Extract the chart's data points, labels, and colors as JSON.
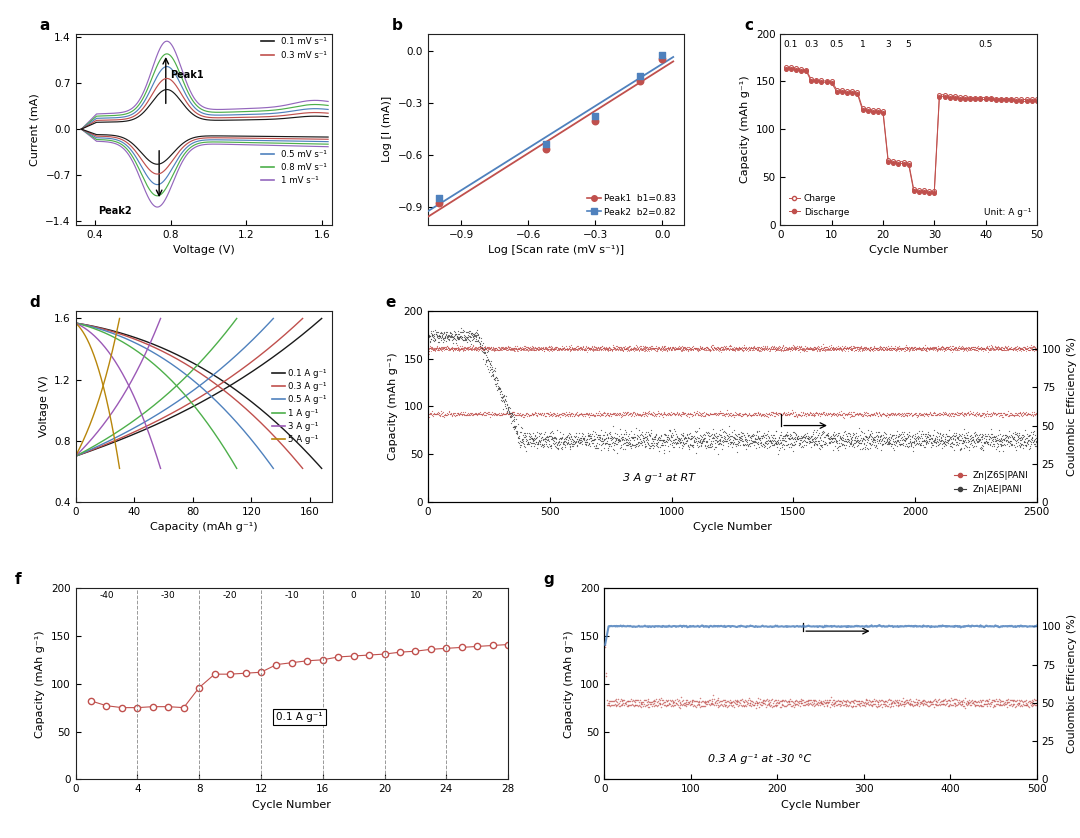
{
  "panel_a": {
    "title": "a",
    "xlabel": "Voltage (V)",
    "ylabel": "Current (mA)",
    "xlim": [
      0.3,
      1.65
    ],
    "ylim": [
      -1.45,
      1.45
    ],
    "xticks": [
      0.4,
      0.8,
      1.2,
      1.6
    ],
    "yticks": [
      -1.4,
      -0.7,
      0.0,
      0.7,
      1.4
    ],
    "colors": [
      "#1a1a1a",
      "#c0504d",
      "#4f81bd",
      "#4daf4a",
      "#9467bd"
    ],
    "labels": [
      "0.1 mV s⁻¹",
      "0.3 mV s⁻¹",
      "0.5 mV s⁻¹",
      "0.8 mV s⁻¹",
      "1 mV s⁻¹"
    ],
    "scales": [
      1.0,
      1.28,
      1.58,
      1.9,
      2.22
    ]
  },
  "panel_b": {
    "title": "b",
    "xlabel": "Log [Scan rate (mV s⁻¹)]",
    "ylabel": "Log [I (mA)]",
    "xlim": [
      -1.05,
      0.1
    ],
    "ylim": [
      -1.0,
      0.1
    ],
    "xticks": [
      -0.9,
      -0.6,
      -0.3,
      0.0
    ],
    "yticks": [
      -0.9,
      -0.6,
      -0.3,
      0.0
    ],
    "peak1_x": [
      -1.0,
      -0.523,
      -0.301,
      -0.097,
      0.0
    ],
    "peak1_y": [
      -0.875,
      -0.565,
      -0.405,
      -0.175,
      -0.045
    ],
    "peak2_x": [
      -1.0,
      -0.523,
      -0.301,
      -0.097,
      0.0
    ],
    "peak2_y": [
      -0.845,
      -0.535,
      -0.375,
      -0.145,
      -0.025
    ],
    "peak1_color": "#c0504d",
    "peak2_color": "#4f81bd",
    "label1": "Peak1  b1=0.83",
    "label2": "Peak2  b2=0.82"
  },
  "panel_c": {
    "title": "c",
    "xlabel": "Cycle Number",
    "ylabel": "Capacity (mAh g⁻¹)",
    "xlim": [
      0,
      50
    ],
    "ylim": [
      0,
      200
    ],
    "xticks": [
      0,
      10,
      20,
      30,
      40,
      50
    ],
    "yticks": [
      0,
      50,
      100,
      150,
      200
    ],
    "color": "#c0504d",
    "rate_labels": [
      "0.1",
      "0.3",
      "0.5",
      "1",
      "3",
      "5",
      "0.5"
    ],
    "rate_x": [
      2,
      6,
      11,
      16,
      21,
      25,
      40
    ],
    "rate_y": [
      185,
      185,
      185,
      185,
      185,
      185,
      185
    ],
    "charge_vals": [
      165,
      165,
      164,
      163,
      162,
      152,
      151,
      151,
      150,
      150,
      141,
      141,
      140,
      140,
      139,
      122,
      121,
      120,
      120,
      119,
      68,
      67,
      66,
      66,
      65,
      37,
      36,
      36,
      35,
      35,
      136,
      136,
      135,
      135,
      134,
      134,
      133,
      133,
      133,
      133,
      133,
      132,
      132,
      132,
      132,
      131,
      131,
      131,
      131,
      131
    ],
    "discharge_vals": [
      163,
      163,
      162,
      161,
      161,
      150,
      150,
      149,
      149,
      148,
      139,
      139,
      138,
      138,
      137,
      120,
      119,
      118,
      118,
      117,
      66,
      65,
      64,
      64,
      63,
      35,
      34,
      34,
      33,
      33,
      134,
      134,
      133,
      133,
      132,
      132,
      131,
      131,
      131,
      131,
      131,
      130,
      130,
      130,
      130,
      129,
      129,
      129,
      129,
      129
    ],
    "annotation": "Unit: A g⁻¹"
  },
  "panel_d": {
    "title": "d",
    "xlabel": "Capacity (mAh g⁻¹)",
    "ylabel": "Voltage (V)",
    "xlim": [
      0,
      175
    ],
    "ylim": [
      0.4,
      1.65
    ],
    "xticks": [
      0,
      40,
      80,
      120,
      160
    ],
    "yticks": [
      0.4,
      0.8,
      1.2,
      1.6
    ],
    "colors": [
      "#1a1a1a",
      "#c0504d",
      "#4f81bd",
      "#4daf4a",
      "#9b59b6",
      "#b8860b"
    ],
    "labels": [
      "0.1 A g⁻¹",
      "0.3 A g⁻¹",
      "0.5 A g⁻¹",
      "1 A g⁻¹",
      "3 A g⁻¹",
      "5 A g⁻¹"
    ],
    "cap_maxes": [
      168,
      155,
      135,
      110,
      58,
      30
    ]
  },
  "panel_e": {
    "title": "e",
    "xlabel": "Cycle Number",
    "ylabel_left": "Capacity (mAh g⁻¹)",
    "ylabel_right": "Coulombic Efficiency (%)",
    "xlim": [
      0,
      2500
    ],
    "ylim_left": [
      0,
      200
    ],
    "ylim_right": [
      0,
      125
    ],
    "xticks": [
      0,
      500,
      1000,
      1500,
      2000,
      2500
    ],
    "yticks_left": [
      0,
      50,
      100,
      150,
      200
    ],
    "yticks_right": [
      0,
      25,
      50,
      75,
      100
    ],
    "color_z6s": "#c0504d",
    "color_ae": "#404040",
    "annotation": "3 A g⁻¹ at RT",
    "label_z6s": "Zn|Z6S|PANI",
    "label_ae": "Zn|AE|PANI"
  },
  "panel_f": {
    "title": "f",
    "xlabel": "Cycle Number",
    "ylabel": "Capacity (mAh g⁻¹)",
    "xlim": [
      0,
      28
    ],
    "ylim": [
      0,
      200
    ],
    "xticks": [
      0,
      4,
      8,
      12,
      16,
      20,
      24,
      28
    ],
    "yticks": [
      0,
      50,
      100,
      150,
      200
    ],
    "color": "#c0504d",
    "temp_labels": [
      "-40",
      "-30",
      "-20",
      "-10",
      "0",
      "10",
      "20"
    ],
    "temp_x": [
      2,
      6,
      10,
      14,
      18,
      22,
      26
    ],
    "vline_positions": [
      4,
      8,
      12,
      16,
      20,
      24
    ],
    "data_x": [
      1,
      2,
      3,
      4,
      5,
      6,
      7,
      8,
      9,
      10,
      11,
      12,
      13,
      14,
      15,
      16,
      17,
      18,
      19,
      20,
      21,
      22,
      23,
      24,
      25,
      26,
      27,
      28
    ],
    "data_y": [
      82,
      77,
      75,
      75,
      76,
      76,
      75,
      96,
      110,
      110,
      111,
      112,
      120,
      122,
      124,
      125,
      128,
      129,
      130,
      131,
      133,
      134,
      136,
      137,
      138,
      139,
      140,
      141
    ],
    "annotation": "0.1 A g⁻¹"
  },
  "panel_g": {
    "title": "g",
    "xlabel": "Cycle Number",
    "ylabel_left": "Capacity (mAh g⁻¹)",
    "ylabel_right": "Coulombic Efficiency (%)",
    "xlim": [
      0,
      500
    ],
    "ylim_left": [
      0,
      200
    ],
    "ylim_right": [
      0,
      125
    ],
    "xticks": [
      0,
      100,
      200,
      300,
      400,
      500
    ],
    "yticks_left": [
      0,
      50,
      100,
      150,
      200
    ],
    "yticks_right": [
      0,
      25,
      50,
      75,
      100
    ],
    "color_capacity": "#c0504d",
    "color_ce": "#4f81bd",
    "annotation": "0.3 A g⁻¹ at -30 °C"
  },
  "bg_color": "#ffffff",
  "panel_label_fontsize": 11,
  "axis_fontsize": 8,
  "tick_fontsize": 7.5
}
